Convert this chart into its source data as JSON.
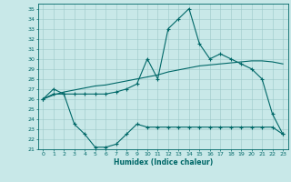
{
  "xlabel": "Humidex (Indice chaleur)",
  "background_color": "#c8e8e8",
  "grid_color": "#9cc8c8",
  "line_color": "#006868",
  "xlim": [
    -0.5,
    23.5
  ],
  "ylim": [
    21,
    35.5
  ],
  "yticks": [
    21,
    22,
    23,
    24,
    25,
    26,
    27,
    28,
    29,
    30,
    31,
    32,
    33,
    34,
    35
  ],
  "xticks": [
    0,
    1,
    2,
    3,
    4,
    5,
    6,
    7,
    8,
    9,
    10,
    11,
    12,
    13,
    14,
    15,
    16,
    17,
    18,
    19,
    20,
    21,
    22,
    23
  ],
  "series1_x": [
    0,
    1,
    2,
    3,
    4,
    5,
    6,
    7,
    8,
    9,
    10,
    11,
    12,
    13,
    14,
    15,
    16,
    17,
    18,
    19,
    20,
    21,
    22,
    23
  ],
  "series1_y": [
    26.0,
    27.0,
    26.5,
    26.5,
    26.5,
    26.5,
    26.5,
    26.7,
    27.0,
    27.5,
    30.0,
    28.0,
    33.0,
    34.0,
    35.0,
    31.5,
    30.0,
    30.5,
    30.0,
    29.5,
    29.0,
    28.0,
    24.5,
    22.5
  ],
  "series2_x": [
    0,
    1,
    2,
    3,
    4,
    5,
    6,
    7,
    8,
    9,
    10,
    11,
    12,
    13,
    14,
    15,
    16,
    17,
    18,
    19,
    20,
    21,
    22,
    23
  ],
  "series2_y": [
    26.0,
    26.4,
    26.7,
    26.9,
    27.1,
    27.3,
    27.4,
    27.6,
    27.8,
    28.0,
    28.2,
    28.4,
    28.7,
    28.9,
    29.1,
    29.3,
    29.4,
    29.5,
    29.6,
    29.7,
    29.8,
    29.8,
    29.7,
    29.5
  ],
  "series3_x": [
    0,
    1,
    2,
    3,
    4,
    5,
    6,
    7,
    8,
    9,
    10,
    11,
    12,
    13,
    14,
    15,
    16,
    17,
    18,
    19,
    20,
    21,
    22,
    23
  ],
  "series3_y": [
    26.0,
    26.5,
    26.5,
    23.5,
    22.5,
    21.2,
    21.2,
    21.5,
    22.5,
    23.5,
    23.2,
    23.2,
    23.2,
    23.2,
    23.2,
    23.2,
    23.2,
    23.2,
    23.2,
    23.2,
    23.2,
    23.2,
    23.2,
    22.5
  ]
}
